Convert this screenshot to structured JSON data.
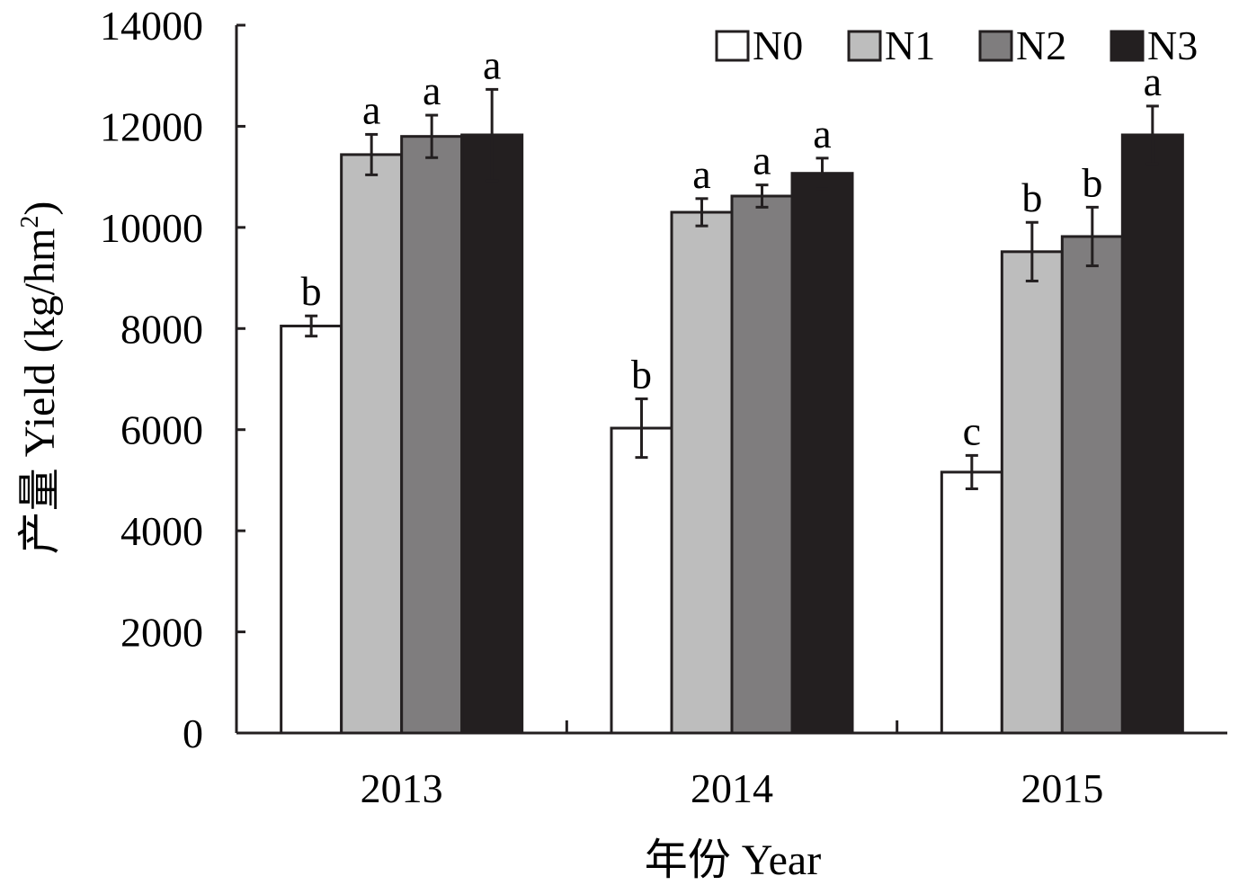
{
  "chart_data": {
    "type": "bar",
    "title": "",
    "xlabel": "年份 Year",
    "ylabel": "产量 Yield (kg/hm²)",
    "ylabel_parts": {
      "main": "产量 Yield (kg/hm",
      "sup": "2",
      "end": ")"
    },
    "ylim": [
      0,
      14000
    ],
    "yticks": [
      0,
      2000,
      4000,
      6000,
      8000,
      10000,
      12000,
      14000
    ],
    "categories": [
      "2013",
      "2014",
      "2015"
    ],
    "legend_position": "top-right",
    "grid": false,
    "series": [
      {
        "name": "N0",
        "color": "#ffffff",
        "values": [
          8050,
          6030,
          5160
        ],
        "errors": [
          200,
          580,
          330
        ],
        "letters": [
          "b",
          "b",
          "c"
        ]
      },
      {
        "name": "N1",
        "color": "#bdbdbd",
        "values": [
          11440,
          10300,
          9520
        ],
        "errors": [
          400,
          270,
          580
        ],
        "letters": [
          "a",
          "a",
          "b"
        ]
      },
      {
        "name": "N2",
        "color": "#7f7d7e",
        "values": [
          11800,
          10620,
          9820
        ],
        "errors": [
          420,
          220,
          580
        ],
        "letters": [
          "a",
          "a",
          "b"
        ]
      },
      {
        "name": "N3",
        "color": "#231f20",
        "values": [
          11830,
          11070,
          11830
        ],
        "errors": [
          900,
          300,
          570
        ],
        "letters": [
          "a",
          "a",
          "a"
        ]
      }
    ]
  }
}
